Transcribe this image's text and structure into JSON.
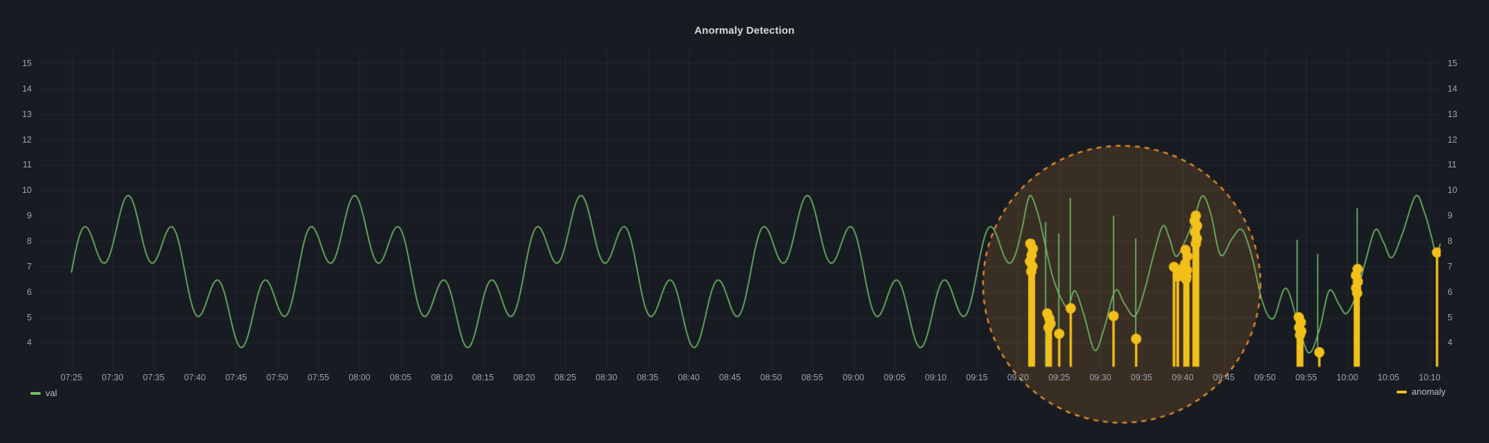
{
  "panel": {
    "title": "Anormaly Detection"
  },
  "legend": {
    "val": "val",
    "anomaly": "anomaly"
  },
  "colors": {
    "background": "#181b21",
    "grid": "rgba(255,255,255,0.06)",
    "axis_text": "#9da5b0",
    "val_series": "#73bf69",
    "anomaly_series": "#f2c01a",
    "highlight_stroke": "#de8a2e",
    "highlight_fill": "rgba(224,140,45,0.17)"
  },
  "chart_data": {
    "type": "line",
    "title": "Anormaly Detection",
    "grid": true,
    "legend_position": "bottom",
    "x_axis": {
      "start": "07:25",
      "end": "10:10",
      "tick_interval_min": 5,
      "tick_labels": [
        "07:25",
        "07:30",
        "07:35",
        "07:40",
        "07:45",
        "07:50",
        "07:55",
        "08:00",
        "08:05",
        "08:10",
        "08:15",
        "08:20",
        "08:25",
        "08:30",
        "08:35",
        "08:40",
        "08:45",
        "08:50",
        "08:55",
        "09:00",
        "09:05",
        "09:10",
        "09:15",
        "09:20",
        "09:25",
        "09:30",
        "09:35",
        "09:40",
        "09:45",
        "09:50",
        "09:55",
        "10:00",
        "10:05",
        "10:10"
      ]
    },
    "y_axis": {
      "ticks": [
        15,
        14,
        13,
        12,
        11,
        10,
        9,
        8,
        7,
        6,
        5,
        4
      ],
      "min": 3.0,
      "max": 15.5,
      "dual_axis": true
    },
    "series": [
      {
        "name": "val",
        "type": "line",
        "color": "#73bf69",
        "pattern": {
          "description": "regular periodic wave from 07:25 until ~09:21 peak",
          "mean": 6.8,
          "components": [
            {
              "amplitude": 1.85,
              "period_min": 27.5
            },
            {
              "amplitude": 1.15,
              "period_min": 5.5
            }
          ],
          "phase_peak_min": 6.9,
          "t_range_min": [
            0,
            115.6
          ]
        },
        "anomalous_keypoints": [
          [
            115.6,
            8.67
          ],
          [
            116.4,
            9.78
          ],
          [
            117.3,
            9.2
          ],
          [
            118.2,
            8.0
          ],
          [
            119.2,
            6.6
          ],
          [
            120.3,
            5.7
          ],
          [
            121.1,
            5.4
          ],
          [
            121.9,
            6.05
          ],
          [
            123.0,
            5.1
          ],
          [
            124.3,
            3.7
          ],
          [
            125.4,
            4.5
          ],
          [
            126.8,
            6.05
          ],
          [
            127.9,
            5.55
          ],
          [
            129.2,
            5.05
          ],
          [
            130.4,
            6.1
          ],
          [
            131.5,
            7.5
          ],
          [
            132.6,
            8.6
          ],
          [
            133.4,
            8.1
          ],
          [
            134.2,
            7.4
          ],
          [
            135.3,
            8.0
          ],
          [
            136.4,
            8.9
          ],
          [
            137.4,
            9.78
          ],
          [
            138.4,
            9.1
          ],
          [
            139.6,
            7.45
          ],
          [
            141.0,
            8.1
          ],
          [
            142.2,
            8.45
          ],
          [
            143.4,
            7.4
          ],
          [
            144.7,
            5.6
          ],
          [
            146.0,
            4.95
          ],
          [
            147.5,
            6.15
          ],
          [
            148.9,
            4.9
          ],
          [
            150.3,
            3.6
          ],
          [
            151.6,
            4.5
          ],
          [
            152.8,
            6.05
          ],
          [
            154.0,
            5.5
          ],
          [
            154.9,
            5.15
          ],
          [
            156.1,
            5.9
          ],
          [
            157.2,
            7.2
          ],
          [
            158.4,
            8.45
          ],
          [
            159.4,
            7.95
          ],
          [
            160.4,
            7.35
          ],
          [
            161.7,
            8.3
          ],
          [
            163.3,
            9.78
          ],
          [
            164.4,
            9.1
          ],
          [
            165.2,
            8.2
          ],
          [
            165.8,
            7.5
          ],
          [
            166.3,
            7.9
          ]
        ],
        "dropout_spikes": [
          [
            118.35,
            8.75,
            3.05
          ],
          [
            119.95,
            8.3,
            4.35
          ],
          [
            121.35,
            9.7,
            5.35
          ],
          [
            126.6,
            9.0,
            5.0
          ],
          [
            129.3,
            8.1,
            4.15
          ],
          [
            148.9,
            8.05,
            4.35
          ],
          [
            151.4,
            7.5,
            3.6
          ],
          [
            156.2,
            9.3,
            5.9
          ]
        ]
      },
      {
        "name": "anomaly",
        "type": "stem-scatter",
        "color": "#f2c01a",
        "baseline_value": 3.05,
        "dot_radius_px": 7.5,
        "stems": [
          {
            "t": 116.65,
            "w": 10,
            "dots": [
              [
                -0.15,
                7.9
              ],
              [
                0.15,
                7.7
              ],
              [
                0.0,
                7.45
              ],
              [
                -0.2,
                7.2
              ],
              [
                0.1,
                7.0
              ],
              [
                -0.05,
                6.8
              ]
            ]
          },
          {
            "t": 118.75,
            "w": 9,
            "dots": [
              [
                -0.2,
                5.15
              ],
              [
                0.05,
                4.95
              ],
              [
                0.2,
                4.75
              ],
              [
                -0.05,
                4.6
              ]
            ]
          },
          {
            "t": 120.0,
            "w": 3.5,
            "dots": [
              [
                0,
                4.35
              ]
            ]
          },
          {
            "t": 121.4,
            "w": 3.5,
            "dots": [
              [
                0,
                5.35
              ]
            ]
          },
          {
            "t": 126.6,
            "w": 3.5,
            "dots": [
              [
                0,
                5.05
              ]
            ]
          },
          {
            "t": 129.35,
            "w": 3.5,
            "dots": [
              [
                0,
                4.15
              ]
            ]
          },
          {
            "t": 133.95,
            "w": 4,
            "dots": [
              [
                0,
                6.98
              ]
            ]
          },
          {
            "t": 134.4,
            "w": 4,
            "dots": [
              [
                0,
                6.6
              ],
              [
                0.15,
                6.87
              ]
            ]
          },
          {
            "t": 135.45,
            "w": 9,
            "dots": [
              [
                -0.1,
                7.65
              ],
              [
                0.12,
                7.4
              ],
              [
                -0.15,
                7.1
              ],
              [
                0.08,
                6.85
              ],
              [
                0.0,
                6.6
              ],
              [
                -0.05,
                6.5
              ]
            ]
          },
          {
            "t": 136.6,
            "w": 10,
            "dots": [
              [
                0.0,
                9.0
              ],
              [
                -0.15,
                8.8
              ],
              [
                0.15,
                8.6
              ],
              [
                -0.1,
                8.35
              ],
              [
                0.12,
                8.1
              ],
              [
                0.0,
                7.9
              ]
            ]
          },
          {
            "t": 149.25,
            "w": 10,
            "dots": [
              [
                -0.15,
                5.0
              ],
              [
                0.1,
                4.8
              ],
              [
                -0.1,
                4.6
              ],
              [
                0.15,
                4.45
              ],
              [
                0.0,
                4.3
              ]
            ]
          },
          {
            "t": 151.6,
            "w": 3.5,
            "dots": [
              [
                0,
                3.62
              ]
            ]
          },
          {
            "t": 156.15,
            "w": 9,
            "dots": [
              [
                0.1,
                6.9
              ],
              [
                -0.1,
                6.65
              ],
              [
                0.12,
                6.4
              ],
              [
                -0.08,
                6.15
              ],
              [
                0.05,
                5.95
              ]
            ]
          },
          {
            "t": 165.9,
            "w": 3.5,
            "dots": [
              [
                0,
                7.55
              ]
            ]
          }
        ]
      }
    ],
    "highlight": {
      "shape": "circle",
      "center_time": "09:33",
      "center_t_min": 127.6,
      "center_value": 6.3,
      "radius_px": 201,
      "dashed": true,
      "stroke": "#de8a2e",
      "fill": "rgba(224,140,45,0.17)"
    }
  }
}
